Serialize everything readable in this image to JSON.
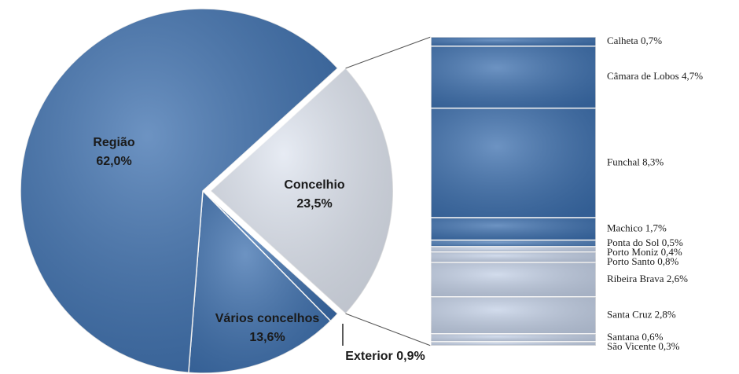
{
  "chart_data": [
    {
      "type": "pie",
      "categories": [
        "Concelhio",
        "Exterior",
        "Vários concelhos",
        "Região"
      ],
      "values": [
        23.5,
        0.9,
        13.6,
        62.0
      ],
      "value_labels": [
        "23,5%",
        "0,9%",
        "13,6%",
        "62,0%"
      ],
      "colors": [
        "#dfe5f0",
        "#3c6fae",
        "#3c6fae",
        "#3c6fae"
      ]
    },
    {
      "type": "bar",
      "stacked": true,
      "categories": [
        "Calheta",
        "Câmara de Lobos",
        "Funchal",
        "Machico",
        "Ponta do Sol",
        "Porto Moniz",
        "Porto Santo",
        "Ribeira Brava",
        "Santa Cruz",
        "Santana",
        "São Vicente"
      ],
      "values": [
        0.7,
        4.7,
        8.3,
        1.7,
        0.5,
        0.4,
        0.8,
        2.6,
        2.8,
        0.6,
        0.3
      ],
      "value_labels": [
        "0,7%",
        "4,7%",
        "8,3%",
        "1,7%",
        "0,5%",
        "0,4%",
        "0,8%",
        "2,6%",
        "2,8%",
        "0,6%",
        "0,3%"
      ],
      "colors": [
        "#3c6fae",
        "#3c6fae",
        "#3c6fae",
        "#3c6fae",
        "#4d7db8",
        "#c3d0e6",
        "#c3d0e6",
        "#c3d0e6",
        "#c3d0e6",
        "#c3d0e6",
        "#c3d0e6"
      ]
    }
  ]
}
